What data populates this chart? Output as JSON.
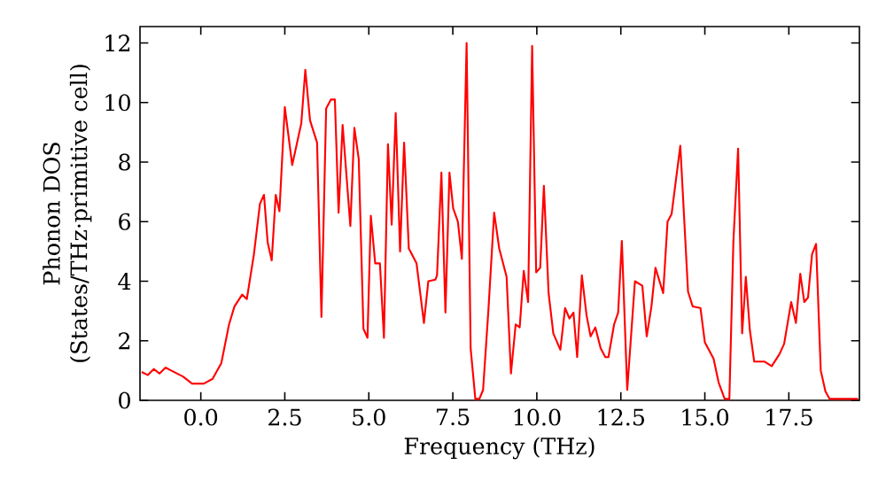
{
  "chart_data": {
    "type": "line",
    "xlabel": "Frequency (THz)",
    "ylabel": "Phonon DOS (States/THz·primitive cell)",
    "xlim": [
      -1.81,
      19.6
    ],
    "ylim": [
      0,
      12.55
    ],
    "xticks": [
      {
        "value": 0,
        "label": "0.0"
      },
      {
        "value": 2.5,
        "label": "2.5"
      },
      {
        "value": 5,
        "label": "5.0"
      },
      {
        "value": 7.5,
        "label": "7.5"
      },
      {
        "value": 10,
        "label": "10.0"
      },
      {
        "value": 12.5,
        "label": "12.5"
      },
      {
        "value": 15,
        "label": "15.0"
      },
      {
        "value": 17.5,
        "label": "17.5"
      }
    ],
    "yticks": [
      0,
      2,
      4,
      6,
      8,
      10,
      12
    ],
    "grid": false,
    "marker": "none",
    "line_style": "solid",
    "series": [
      {
        "color": "#ff0000",
        "x": [
          -1.76,
          -1.58,
          -1.4,
          -1.23,
          -1.05,
          -0.88,
          -0.53,
          -0.26,
          0.09,
          0.35,
          0.61,
          0.84,
          1.0,
          1.23,
          1.37,
          1.58,
          1.76,
          1.88,
          1.99,
          2.11,
          2.23,
          2.34,
          2.5,
          2.72,
          2.99,
          3.11,
          3.25,
          3.46,
          3.59,
          3.73,
          3.87,
          3.99,
          4.1,
          4.22,
          4.45,
          4.57,
          4.7,
          4.84,
          4.96,
          5.06,
          5.19,
          5.33,
          5.45,
          5.57,
          5.68,
          5.8,
          5.93,
          6.05,
          6.19,
          6.42,
          6.64,
          6.77,
          6.98,
          7.03,
          7.16,
          7.28,
          7.4,
          7.51,
          7.65,
          7.77,
          7.91,
          8.03,
          8.17,
          8.29,
          8.4,
          8.56,
          8.73,
          8.88,
          9.1,
          9.23,
          9.37,
          9.49,
          9.61,
          9.74,
          9.86,
          9.98,
          10.1,
          10.21,
          10.35,
          10.49,
          10.7,
          10.84,
          10.97,
          11.09,
          11.2,
          11.34,
          11.48,
          11.6,
          11.74,
          11.9,
          12.04,
          12.13,
          12.3,
          12.42,
          12.53,
          12.69,
          12.92,
          13.14,
          13.27,
          13.41,
          13.53,
          13.76,
          13.89,
          14.01,
          14.27,
          14.5,
          14.64,
          14.87,
          15.0,
          15.26,
          15.41,
          15.59,
          15.73,
          15.85,
          15.99,
          16.11,
          16.22,
          16.34,
          16.47,
          16.78,
          16.99,
          17.22,
          17.36,
          17.57,
          17.71,
          17.84,
          17.96,
          18.07,
          18.19,
          18.31,
          18.45,
          18.59,
          18.71,
          19.56
        ],
        "values": [
          0.95,
          0.85,
          1.05,
          0.9,
          1.1,
          1.0,
          0.8,
          0.56,
          0.56,
          0.72,
          1.25,
          2.55,
          3.15,
          3.55,
          3.4,
          4.9,
          6.6,
          6.9,
          5.3,
          4.7,
          6.9,
          6.35,
          9.85,
          7.9,
          9.3,
          11.1,
          9.4,
          8.65,
          2.8,
          9.8,
          10.1,
          10.1,
          6.3,
          9.25,
          5.85,
          9.15,
          8.1,
          2.4,
          2.1,
          6.2,
          4.6,
          4.6,
          2.1,
          8.6,
          5.9,
          9.65,
          5.0,
          8.65,
          5.1,
          4.6,
          2.6,
          4.0,
          4.05,
          4.2,
          7.65,
          2.95,
          7.65,
          6.45,
          6.0,
          4.75,
          12.0,
          1.75,
          0.05,
          0.05,
          0.35,
          3.05,
          6.3,
          5.1,
          4.15,
          0.9,
          2.55,
          2.45,
          4.35,
          3.3,
          11.9,
          4.3,
          4.45,
          7.2,
          3.6,
          2.25,
          1.7,
          3.1,
          2.75,
          2.95,
          1.45,
          4.2,
          2.85,
          2.15,
          2.45,
          1.75,
          1.45,
          1.45,
          2.55,
          2.95,
          5.35,
          0.35,
          4.0,
          3.85,
          2.15,
          3.15,
          4.45,
          3.6,
          6.0,
          6.25,
          8.55,
          3.65,
          3.15,
          3.1,
          1.95,
          1.4,
          0.6,
          0.05,
          0.05,
          5.35,
          8.45,
          2.25,
          4.15,
          2.35,
          1.3,
          1.3,
          1.15,
          1.55,
          1.9,
          3.3,
          2.6,
          4.25,
          3.3,
          3.45,
          4.9,
          5.25,
          1.0,
          0.3,
          0.05,
          0.05
        ]
      }
    ]
  }
}
